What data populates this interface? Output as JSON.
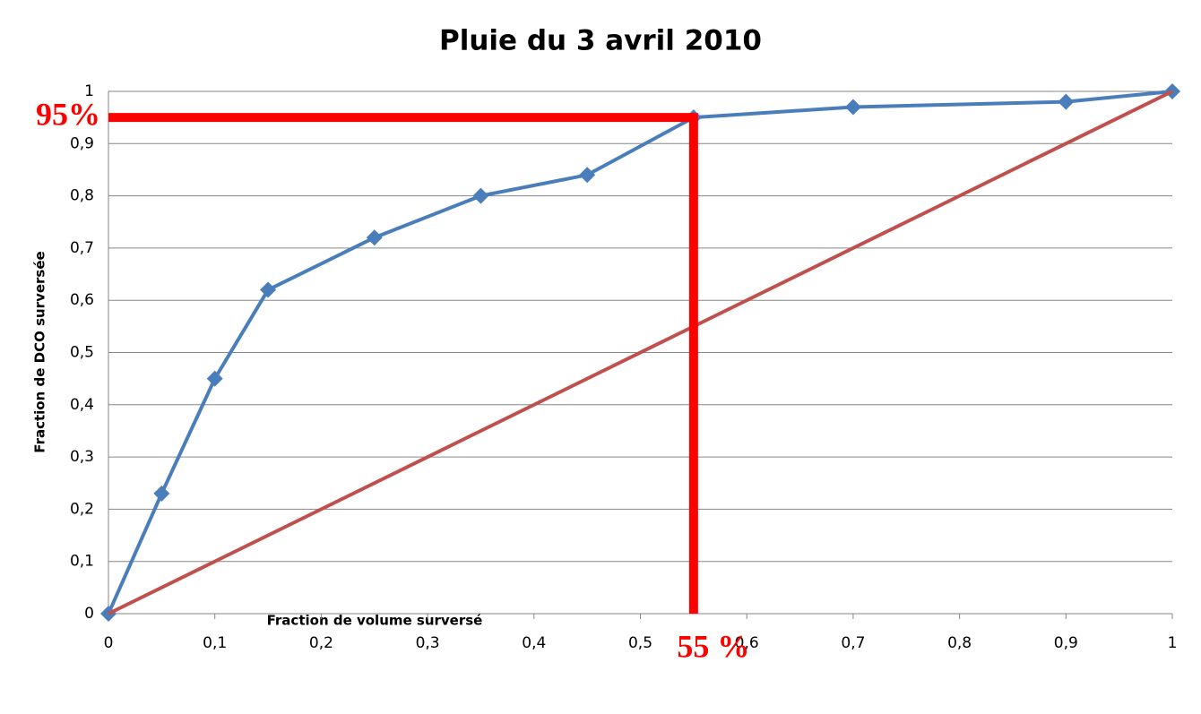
{
  "chart_data": {
    "type": "line",
    "title": "Pluie du 3 avril 2010",
    "xlabel": "Fraction de volume surversé",
    "ylabel": "Fraction de DCO surversée",
    "xlim": [
      0,
      1
    ],
    "ylim": [
      0,
      1
    ],
    "xticks": [
      0,
      {
        "value": 0.1,
        "label": "0,1"
      },
      {
        "value": 0.2,
        "label": "0,2"
      },
      {
        "value": 0.3,
        "label": "0,3"
      },
      {
        "value": 0.4,
        "label": "0,4"
      },
      {
        "value": 0.5,
        "label": "0,5"
      },
      {
        "value": 0.6,
        "label": "0,6"
      },
      {
        "value": 0.7,
        "label": "0,7"
      },
      {
        "value": 0.8,
        "label": "0,8"
      },
      {
        "value": 0.9,
        "label": "0,9"
      },
      1
    ],
    "yticks": [
      0,
      {
        "value": 0.1,
        "label": "0,1"
      },
      {
        "value": 0.2,
        "label": "0,2"
      },
      {
        "value": 0.3,
        "label": "0,3"
      },
      {
        "value": 0.4,
        "label": "0,4"
      },
      {
        "value": 0.5,
        "label": "0,5"
      },
      {
        "value": 0.6,
        "label": "0,6"
      },
      {
        "value": 0.7,
        "label": "0,7"
      },
      {
        "value": 0.8,
        "label": "0,8"
      },
      {
        "value": 0.9,
        "label": "0,9"
      },
      1
    ],
    "grid": true,
    "series": [
      {
        "color": "#4a7ebb",
        "markers": true,
        "x": [
          0,
          0.05,
          0.1,
          0.15,
          0.25,
          0.35,
          0.45,
          0.55,
          0.7,
          0.9,
          1
        ],
        "values": [
          0,
          0.23,
          0.45,
          0.62,
          0.72,
          0.8,
          0.84,
          0.95,
          0.97,
          0.98,
          1
        ]
      },
      {
        "color": "#c0504d",
        "markers": false,
        "x": [
          0,
          1
        ],
        "values": [
          0,
          1
        ]
      }
    ],
    "annotations": [
      {
        "label": "95%",
        "y": 0.95,
        "color": "#ff0000"
      },
      {
        "label": "55 %",
        "x": 0.55,
        "color": "#ff0000"
      }
    ]
  }
}
